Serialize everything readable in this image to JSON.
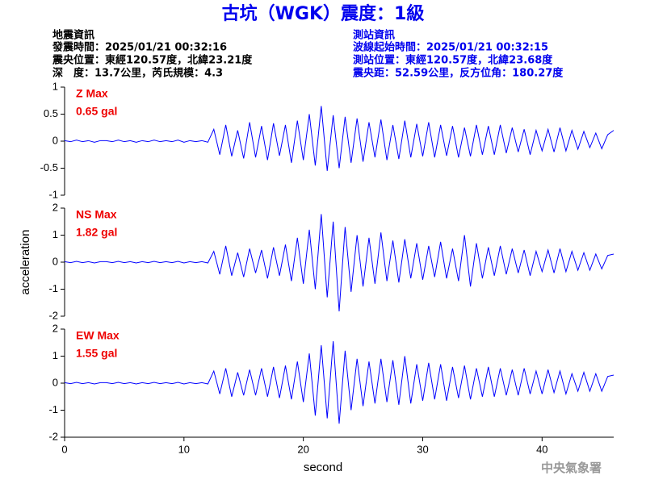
{
  "header": {
    "title": "古坑（WGK）震度：1級",
    "left": [
      "地震資訊",
      "發震時間：2025/01/21 00:32:16",
      "震央位置：東經120.57度，北緯23.21度",
      "深　度：13.7公里，芮氏規模：4.3"
    ],
    "right": [
      "測站資訊",
      "波線起始時間：2025/01/21 00:32:15",
      "測站位置：東經120.57度，北緯23.68度",
      "震央距：52.59公里，反方位角：180.27度"
    ],
    "footer": "中央氣象署"
  },
  "chart_data": [
    {
      "type": "line",
      "annotation": [
        "Z Max",
        "0.65 gal"
      ],
      "color": "#0000ff",
      "ylim": [
        -1,
        1
      ],
      "yticks": [
        1,
        0.5,
        0,
        -0.5,
        -1
      ],
      "xlim": [
        0,
        46
      ],
      "x": [
        0,
        0.5,
        1,
        1.5,
        2,
        2.5,
        3,
        3.5,
        4,
        4.5,
        5,
        5.5,
        6,
        6.5,
        7,
        7.5,
        8,
        8.5,
        9,
        9.5,
        10,
        10.5,
        11,
        11.5,
        12,
        12.5,
        13,
        13.5,
        14,
        14.5,
        15,
        15.5,
        16,
        16.5,
        17,
        17.5,
        18,
        18.5,
        19,
        19.5,
        20,
        20.5,
        21,
        21.5,
        22,
        22.5,
        23,
        23.5,
        24,
        24.5,
        25,
        25.5,
        26,
        26.5,
        27,
        27.5,
        28,
        28.5,
        29,
        29.5,
        30,
        30.5,
        31,
        31.5,
        32,
        32.5,
        33,
        33.5,
        34,
        34.5,
        35,
        35.5,
        36,
        36.5,
        37,
        37.5,
        38,
        38.5,
        39,
        39.5,
        40,
        40.5,
        41,
        41.5,
        42,
        42.5,
        43,
        43.5,
        44,
        44.5,
        45,
        45.5,
        46
      ],
      "values": [
        0.01,
        -0.01,
        0.02,
        -0.01,
        0.01,
        -0.02,
        0.01,
        0.01,
        -0.01,
        0.02,
        -0.01,
        0.01,
        -0.02,
        0.01,
        -0.01,
        0.02,
        -0.01,
        0.01,
        -0.01,
        0.02,
        -0.02,
        0.01,
        -0.01,
        0.01,
        -0.02,
        0.22,
        -0.25,
        0.3,
        -0.28,
        0.2,
        -0.32,
        0.35,
        -0.3,
        0.28,
        -0.35,
        0.33,
        -0.27,
        0.3,
        -0.4,
        0.38,
        -0.35,
        0.5,
        -0.45,
        0.65,
        -0.55,
        0.48,
        -0.5,
        0.45,
        -0.4,
        0.42,
        -0.38,
        0.35,
        -0.3,
        0.4,
        -0.35,
        0.3,
        -0.33,
        0.38,
        -0.3,
        0.32,
        -0.28,
        0.35,
        -0.3,
        0.3,
        -0.27,
        0.28,
        -0.3,
        0.25,
        -0.28,
        0.3,
        -0.25,
        0.28,
        -0.25,
        0.3,
        -0.22,
        0.25,
        -0.2,
        0.22,
        -0.25,
        0.2,
        -0.18,
        0.22,
        -0.2,
        0.25,
        -0.18,
        0.2,
        -0.15,
        0.18,
        -0.12,
        0.15,
        -0.14,
        0.12,
        0.2
      ]
    },
    {
      "type": "line",
      "annotation": [
        "NS Max",
        "1.82 gal"
      ],
      "color": "#0000ff",
      "ylabel": "acceleration",
      "ylim": [
        -2,
        2
      ],
      "yticks": [
        2,
        1,
        0,
        -1,
        -2
      ],
      "xlim": [
        0,
        46
      ],
      "x": [
        0,
        0.5,
        1,
        1.5,
        2,
        2.5,
        3,
        3.5,
        4,
        4.5,
        5,
        5.5,
        6,
        6.5,
        7,
        7.5,
        8,
        8.5,
        9,
        9.5,
        10,
        10.5,
        11,
        11.5,
        12,
        12.5,
        13,
        13.5,
        14,
        14.5,
        15,
        15.5,
        16,
        16.5,
        17,
        17.5,
        18,
        18.5,
        19,
        19.5,
        20,
        20.5,
        21,
        21.5,
        22,
        22.5,
        23,
        23.5,
        24,
        24.5,
        25,
        25.5,
        26,
        26.5,
        27,
        27.5,
        28,
        28.5,
        29,
        29.5,
        30,
        30.5,
        31,
        31.5,
        32,
        32.5,
        33,
        33.5,
        34,
        34.5,
        35,
        35.5,
        36,
        36.5,
        37,
        37.5,
        38,
        38.5,
        39,
        39.5,
        40,
        40.5,
        41,
        41.5,
        42,
        42.5,
        43,
        43.5,
        44,
        44.5,
        45,
        45.5,
        46
      ],
      "values": [
        0.02,
        -0.02,
        0.03,
        -0.02,
        0.02,
        -0.03,
        0.02,
        0.02,
        -0.02,
        0.03,
        -0.02,
        0.02,
        -0.03,
        0.02,
        -0.02,
        0.03,
        -0.02,
        0.02,
        -0.02,
        0.03,
        -0.03,
        0.02,
        -0.02,
        0.02,
        -0.03,
        0.4,
        -0.45,
        0.6,
        -0.5,
        0.35,
        -0.55,
        0.5,
        -0.4,
        0.45,
        -0.6,
        0.55,
        -0.5,
        0.65,
        -0.7,
        0.9,
        -0.8,
        1.2,
        -1.0,
        1.78,
        -1.3,
        1.5,
        -1.82,
        1.3,
        -1.1,
        1.0,
        -0.9,
        0.9,
        -0.8,
        1.1,
        -0.7,
        0.8,
        -0.75,
        0.85,
        -0.6,
        0.7,
        -0.65,
        0.6,
        -0.55,
        0.75,
        -0.6,
        0.5,
        -0.7,
        1.0,
        -0.9,
        0.7,
        -0.6,
        0.55,
        -0.5,
        0.6,
        -0.45,
        0.5,
        -0.4,
        0.45,
        -0.5,
        0.4,
        -0.35,
        0.45,
        -0.4,
        0.5,
        -0.35,
        0.4,
        -0.3,
        0.35,
        -0.3,
        0.3,
        -0.25,
        0.25,
        0.3
      ]
    },
    {
      "type": "line",
      "annotation": [
        "EW Max",
        "1.55 gal"
      ],
      "color": "#0000ff",
      "xlabel": "second",
      "ylim": [
        -2,
        2
      ],
      "yticks": [
        2,
        1,
        0,
        -1,
        -2
      ],
      "xlim": [
        0,
        46
      ],
      "xticks": [
        0,
        10,
        20,
        30,
        40
      ],
      "x": [
        0,
        0.5,
        1,
        1.5,
        2,
        2.5,
        3,
        3.5,
        4,
        4.5,
        5,
        5.5,
        6,
        6.5,
        7,
        7.5,
        8,
        8.5,
        9,
        9.5,
        10,
        10.5,
        11,
        11.5,
        12,
        12.5,
        13,
        13.5,
        14,
        14.5,
        15,
        15.5,
        16,
        16.5,
        17,
        17.5,
        18,
        18.5,
        19,
        19.5,
        20,
        20.5,
        21,
        21.5,
        22,
        22.5,
        23,
        23.5,
        24,
        24.5,
        25,
        25.5,
        26,
        26.5,
        27,
        27.5,
        28,
        28.5,
        29,
        29.5,
        30,
        30.5,
        31,
        31.5,
        32,
        32.5,
        33,
        33.5,
        34,
        34.5,
        35,
        35.5,
        36,
        36.5,
        37,
        37.5,
        38,
        38.5,
        39,
        39.5,
        40,
        40.5,
        41,
        41.5,
        42,
        42.5,
        43,
        43.5,
        44,
        44.5,
        45,
        45.5,
        46
      ],
      "values": [
        0.02,
        -0.02,
        0.03,
        -0.02,
        0.02,
        -0.03,
        0.02,
        0.02,
        -0.02,
        0.03,
        -0.02,
        0.02,
        -0.03,
        0.02,
        -0.02,
        0.03,
        -0.02,
        0.02,
        -0.02,
        0.03,
        -0.03,
        0.02,
        -0.02,
        0.02,
        -0.03,
        0.45,
        -0.4,
        0.55,
        -0.5,
        0.4,
        -0.45,
        0.5,
        -0.45,
        0.55,
        -0.5,
        0.6,
        -0.55,
        0.65,
        -0.6,
        0.8,
        -0.7,
        1.1,
        -1.2,
        1.4,
        -1.3,
        1.55,
        -1.5,
        1.2,
        -1.0,
        0.9,
        -0.85,
        0.8,
        -0.75,
        0.9,
        -0.7,
        0.85,
        -0.8,
        1.0,
        -0.75,
        0.7,
        -0.65,
        0.75,
        -0.6,
        0.7,
        -0.65,
        0.6,
        -0.55,
        0.65,
        -0.6,
        0.55,
        -0.5,
        0.6,
        -0.5,
        0.55,
        -0.45,
        0.5,
        -0.45,
        0.55,
        -0.4,
        0.45,
        -0.4,
        0.5,
        -0.35,
        0.45,
        -0.4,
        0.35,
        -0.3,
        0.4,
        -0.3,
        0.35,
        -0.3,
        0.25,
        0.3
      ]
    }
  ]
}
